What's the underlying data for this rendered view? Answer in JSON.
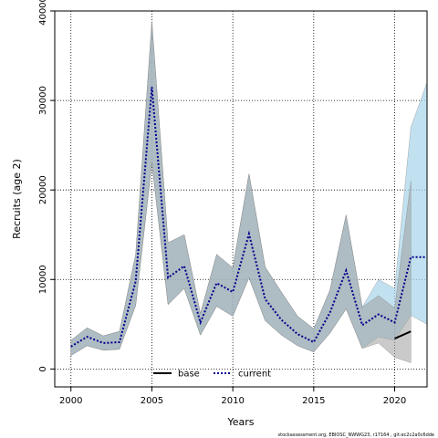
{
  "chart_data": {
    "type": "line",
    "xlabel": "Years",
    "ylabel": "Recruits (age 2)",
    "xlim": [
      1999,
      2022
    ],
    "ylim": [
      -2000,
      40000
    ],
    "xticks": [
      2000,
      2005,
      2010,
      2015,
      2020
    ],
    "yticks": [
      0,
      10000,
      20000,
      30000,
      40000
    ],
    "grid": true,
    "legend_placement": "bottom-center",
    "colors": {
      "base": "#000000",
      "base_band": "#9e9e9e",
      "current": "#00008b",
      "current_band": "#a8d4ea"
    },
    "series": [
      {
        "name": "base",
        "style": "solid",
        "x": [
          2020,
          2021
        ],
        "y": [
          3400,
          4200
        ]
      },
      {
        "name": "current",
        "style": "dotted",
        "x": [
          2000,
          2001,
          2002,
          2003,
          2004,
          2005,
          2006,
          2007,
          2008,
          2009,
          2010,
          2011,
          2012,
          2013,
          2014,
          2015,
          2016,
          2017,
          2018,
          2019,
          2020,
          2021,
          2022
        ],
        "y": [
          2500,
          3600,
          2900,
          3000,
          9800,
          31500,
          10200,
          11500,
          5200,
          9600,
          8600,
          15100,
          7800,
          5500,
          3900,
          3000,
          6300,
          11000,
          4900,
          6100,
          5200,
          12500,
          12500
        ]
      }
    ],
    "bands": [
      {
        "name": "base",
        "x": [
          2000,
          2001,
          2002,
          2003,
          2004,
          2005,
          2006,
          2007,
          2008,
          2009,
          2010,
          2011,
          2012,
          2013,
          2014,
          2015,
          2016,
          2017,
          2018,
          2019,
          2020,
          2021
        ],
        "lower": [
          1500,
          2600,
          2100,
          2200,
          7100,
          23000,
          7200,
          9000,
          3800,
          7000,
          5900,
          10200,
          5400,
          3800,
          2600,
          1900,
          4000,
          6700,
          2300,
          2900,
          1300,
          700
        ],
        "upper": [
          3200,
          4600,
          3700,
          4200,
          12800,
          38800,
          14100,
          15000,
          6200,
          12800,
          11300,
          21800,
          11400,
          8600,
          5900,
          4500,
          8800,
          17200,
          6900,
          8200,
          6800,
          21000
        ]
      },
      {
        "name": "current",
        "x": [
          2000,
          2001,
          2002,
          2003,
          2004,
          2005,
          2006,
          2007,
          2008,
          2009,
          2010,
          2011,
          2012,
          2013,
          2014,
          2015,
          2016,
          2017,
          2018,
          2019,
          2020,
          2021,
          2022
        ],
        "lower": [
          1500,
          2600,
          2100,
          2200,
          7100,
          23000,
          7200,
          9000,
          3800,
          7000,
          5900,
          10200,
          5400,
          3800,
          2600,
          1900,
          4000,
          6700,
          2300,
          3600,
          3200,
          6000,
          5000
        ],
        "upper": [
          3200,
          4600,
          3700,
          4200,
          12800,
          38800,
          14100,
          15000,
          6200,
          12800,
          11300,
          21800,
          11400,
          8600,
          5900,
          4500,
          8800,
          17200,
          6900,
          10000,
          9000,
          27000,
          32000
        ]
      }
    ],
    "footnote": "stockassessment.org, EBIOSC_NWWG23, r17164 , git:ec2c2a0c6dde"
  }
}
